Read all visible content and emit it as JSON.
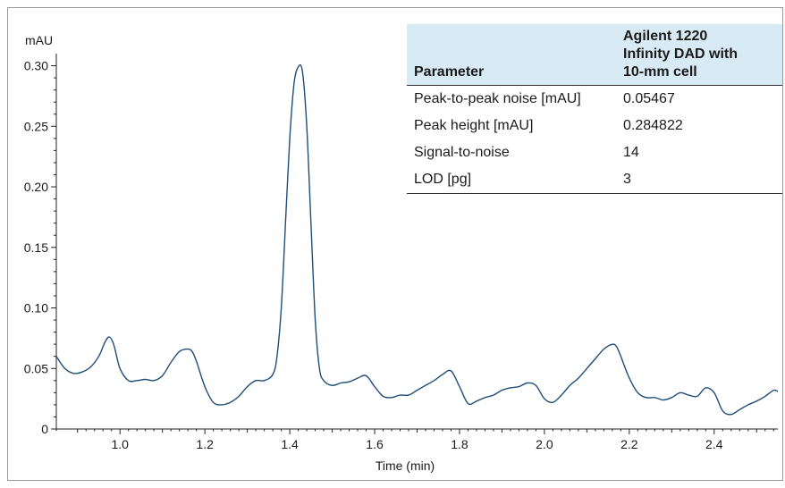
{
  "chart_data": {
    "type": "line",
    "ylabel": "mAU",
    "xlabel": "Time (min)",
    "xlim": [
      0.85,
      2.55
    ],
    "ylim": [
      0,
      0.31
    ],
    "x_ticks": [
      1.0,
      1.2,
      1.4,
      1.6,
      1.8,
      2.0,
      2.2,
      2.4
    ],
    "x_tick_labels": [
      "1.0",
      "1.2",
      "1.4",
      "1.6",
      "1.8",
      "2.0",
      "2.2",
      "2.4"
    ],
    "y_ticks": [
      0,
      0.05,
      0.1,
      0.15,
      0.2,
      0.25,
      0.3
    ],
    "y_tick_labels": [
      "0",
      "0.05",
      "0.10",
      "0.15",
      "0.20",
      "0.25",
      "0.30"
    ],
    "line_color": "#1f4e79",
    "series": [
      {
        "x": [
          0.85,
          0.87,
          0.89,
          0.91,
          0.93,
          0.95,
          0.965,
          0.975,
          0.985,
          1.0,
          1.02,
          1.04,
          1.06,
          1.08,
          1.1,
          1.12,
          1.14,
          1.16,
          1.17,
          1.18,
          1.2,
          1.22,
          1.24,
          1.26,
          1.28,
          1.3,
          1.32,
          1.34,
          1.36,
          1.37,
          1.38,
          1.39,
          1.4,
          1.41,
          1.42,
          1.43,
          1.44,
          1.45,
          1.46,
          1.47,
          1.48,
          1.5,
          1.52,
          1.54,
          1.56,
          1.58,
          1.6,
          1.62,
          1.64,
          1.66,
          1.68,
          1.7,
          1.72,
          1.74,
          1.76,
          1.78,
          1.8,
          1.82,
          1.84,
          1.86,
          1.88,
          1.9,
          1.92,
          1.94,
          1.96,
          1.98,
          2.0,
          2.02,
          2.04,
          2.06,
          2.08,
          2.1,
          2.12,
          2.14,
          2.16,
          2.17,
          2.18,
          2.2,
          2.22,
          2.24,
          2.26,
          2.28,
          2.3,
          2.32,
          2.34,
          2.36,
          2.38,
          2.4,
          2.42,
          2.44,
          2.46,
          2.48,
          2.5,
          2.52,
          2.54,
          2.55
        ],
        "y": [
          0.06,
          0.05,
          0.046,
          0.047,
          0.051,
          0.06,
          0.072,
          0.076,
          0.07,
          0.05,
          0.04,
          0.04,
          0.041,
          0.04,
          0.044,
          0.055,
          0.064,
          0.066,
          0.064,
          0.056,
          0.035,
          0.022,
          0.02,
          0.022,
          0.027,
          0.035,
          0.04,
          0.04,
          0.045,
          0.06,
          0.1,
          0.17,
          0.24,
          0.285,
          0.299,
          0.295,
          0.25,
          0.17,
          0.09,
          0.05,
          0.04,
          0.036,
          0.038,
          0.039,
          0.042,
          0.044,
          0.035,
          0.027,
          0.026,
          0.028,
          0.028,
          0.032,
          0.036,
          0.04,
          0.045,
          0.048,
          0.035,
          0.021,
          0.023,
          0.026,
          0.028,
          0.032,
          0.034,
          0.035,
          0.038,
          0.036,
          0.025,
          0.022,
          0.028,
          0.036,
          0.042,
          0.05,
          0.058,
          0.066,
          0.07,
          0.068,
          0.06,
          0.042,
          0.03,
          0.026,
          0.026,
          0.024,
          0.026,
          0.03,
          0.028,
          0.027,
          0.034,
          0.03,
          0.015,
          0.012,
          0.016,
          0.02,
          0.023,
          0.027,
          0.032,
          0.031
        ]
      }
    ]
  },
  "table": {
    "headers": [
      "Parameter",
      "Agilent 1220\nInfinity DAD with\n10-mm cell"
    ],
    "rows": [
      [
        "Peak-to-peak noise [mAU]",
        "0.05467"
      ],
      [
        "Peak height [mAU]",
        "0.284822"
      ],
      [
        "Signal-to-noise",
        "14"
      ],
      [
        "LOD [pg]",
        "3"
      ]
    ]
  }
}
